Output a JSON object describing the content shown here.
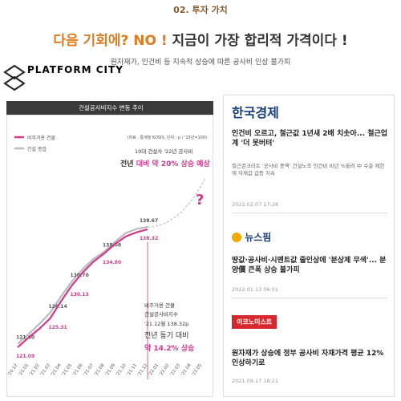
{
  "header": {
    "section": "02. 투자 가치",
    "headline_a": "다음 기회에? NO !",
    "headline_b": "지금이 가장 합리적 가격이다 !",
    "subtitle": "원자재가, 인건비 등 지속적 상승에 따른 공사비 인상 불가피",
    "logo": "PLATFORM CITY"
  },
  "chart_data": {
    "type": "line",
    "title": "건설공사비지수 변동 추이",
    "source": "(자료 : 통계청 KOSIS, 단위 : p / '15년=100)",
    "categories": [
      "'20.12",
      "'21.01",
      "'21.02",
      "'21.03",
      "'21.04",
      "'21.05",
      "'21.06",
      "'21.07",
      "'21.08",
      "'21.09",
      "'21.10",
      "'21.11",
      "'21.12",
      "'22.01",
      "'22.02",
      "'22.03",
      "'22.04",
      "'22.05"
    ],
    "series": [
      {
        "name": "비주거용 건물",
        "color": "#d6368c",
        "values": [
          121.09,
          122.5,
          123.8,
          125.31,
          127.8,
          130.13,
          132.0,
          133.6,
          134.8,
          136.2,
          137.3,
          137.9,
          138.32,
          null,
          null,
          null,
          null,
          null
        ],
        "value_labels": [
          "121.09",
          null,
          null,
          "125.31",
          null,
          "130.13",
          null,
          null,
          "134.80",
          null,
          null,
          null,
          "138.32",
          null,
          null,
          null,
          null,
          null
        ]
      },
      {
        "name": "건설 종합",
        "color": "#bbbbbb",
        "values": [
          121.6,
          123.0,
          124.5,
          126.14,
          128.5,
          130.7,
          132.5,
          134.0,
          135.08,
          136.5,
          137.8,
          138.4,
          138.67,
          null,
          null,
          null,
          null,
          null
        ],
        "value_labels": [
          "121.60",
          null,
          null,
          "126.14",
          null,
          "130.70",
          null,
          null,
          "135.08",
          null,
          null,
          null,
          "138.67",
          null,
          null,
          null,
          null,
          null
        ]
      }
    ],
    "annotations": [
      "10대 건설사 '22년 공사비",
      "전년 대비 약 20% 상승 예상",
      "?",
      "비주거용 건물",
      "건설공사비지수",
      "'21.12월 138.32p",
      "전년 동기 대비",
      "약 14.2% 상승"
    ]
  },
  "news": [
    {
      "source": "한국경제",
      "headline": "인건비 오르고, 철근값 1년새 2배 치솟아... 철근업계 '더 못버텨'",
      "summary": "철근콘크리트 '공사비 중액' 건설노조 인건비 비년 %올려 中 수출 제한에 자재값 급등 지속",
      "date": "2022.02.07 17:28"
    },
    {
      "source": "뉴스핌",
      "headline": "땅값·공사비·시멘트값 줄인상에 '분상제 무색'... 분양價 큰폭 상승 불가피",
      "date": "2022.01.13 06:01"
    },
    {
      "source": "이코노미스트",
      "headline": "원자재가 상승에 정부 공사비 자재가격 평균 12% 인상하기로",
      "date": "2021.09.17 18:21"
    }
  ]
}
